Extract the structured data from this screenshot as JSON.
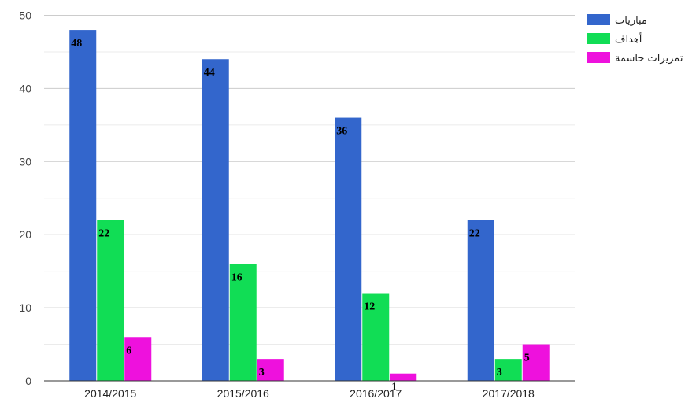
{
  "chart_data": {
    "type": "bar",
    "categories": [
      "2014/2015",
      "2015/2016",
      "2016/2017",
      "2017/2018"
    ],
    "series": [
      {
        "name": "مباريات",
        "color": "#3366cc",
        "values": [
          48,
          44,
          36,
          22
        ]
      },
      {
        "name": "أهداف",
        "color": "#11dd55",
        "values": [
          22,
          16,
          12,
          3
        ]
      },
      {
        "name": "تمريرات حاسمة",
        "color": "#ee11dd",
        "values": [
          6,
          3,
          1,
          5
        ]
      }
    ],
    "ylim": [
      0,
      50
    ],
    "yticks": [
      0,
      10,
      20,
      30,
      40,
      50
    ],
    "grid": true,
    "legend_position": "top-right",
    "data_labels": true
  }
}
